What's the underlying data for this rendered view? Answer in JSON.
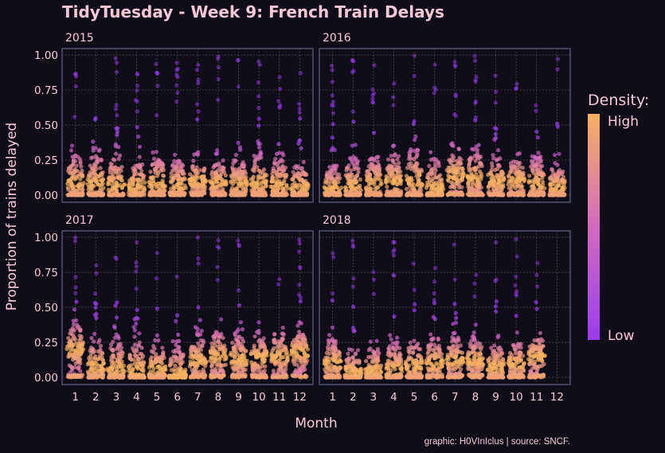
{
  "chart_data": {
    "type": "scatter",
    "subtype": "beeswarm-faceted",
    "title": "TidyTuesday - Week 9: French Train Delays",
    "xlabel": "Month",
    "ylabel": "Proportion of trains delayed",
    "caption": "graphic: H0VInIclus | source: SNCF.",
    "x_ticks": [
      "1",
      "2",
      "3",
      "4",
      "5",
      "6",
      "7",
      "8",
      "9",
      "10",
      "11",
      "12"
    ],
    "y_ticks": [
      "0.00",
      "0.25",
      "0.50",
      "0.75",
      "1.00"
    ],
    "ylim": [
      0,
      1
    ],
    "grid": true,
    "legend": {
      "title": "Density:",
      "high_label": "High",
      "low_label": "Low",
      "placement": "right"
    },
    "colors": {
      "low": "#9b3cf0",
      "mid": "#d46ac0",
      "high": "#f6b062",
      "panel_border": "#4a4f6e",
      "grid": "#6b5a48",
      "text": "#f8c8d4",
      "background": "#0f0d1a"
    },
    "facets": [
      {
        "name": "2015",
        "months": [
          1,
          2,
          3,
          4,
          5,
          6,
          7,
          8,
          9,
          10,
          11,
          12
        ],
        "median_delay": [
          0.09,
          0.08,
          0.07,
          0.06,
          0.08,
          0.07,
          0.1,
          0.09,
          0.08,
          0.09,
          0.07,
          0.06
        ],
        "spread": [
          0.55,
          0.6,
          0.62,
          0.6,
          0.58,
          0.52,
          0.5,
          0.45,
          0.5,
          0.55,
          0.55,
          0.48
        ]
      },
      {
        "name": "2016",
        "months": [
          1,
          2,
          3,
          4,
          5,
          6,
          7,
          8,
          9,
          10,
          11,
          12
        ],
        "median_delay": [
          0.05,
          0.07,
          0.08,
          0.09,
          0.1,
          0.05,
          0.14,
          0.12,
          0.1,
          0.1,
          0.08,
          0.06
        ],
        "spread": [
          0.45,
          0.5,
          0.55,
          0.58,
          0.6,
          0.6,
          0.55,
          0.55,
          0.5,
          0.5,
          0.5,
          0.45
        ]
      },
      {
        "name": "2017",
        "months": [
          1,
          2,
          3,
          4,
          5,
          6,
          7,
          8,
          9,
          10,
          11,
          12
        ],
        "median_delay": [
          0.2,
          0.08,
          0.06,
          0.05,
          0.06,
          0.02,
          0.12,
          0.15,
          0.13,
          0.14,
          0.15,
          0.18
        ],
        "spread": [
          0.5,
          0.55,
          0.58,
          0.6,
          0.55,
          0.6,
          0.5,
          0.5,
          0.5,
          0.48,
          0.5,
          0.5
        ]
      },
      {
        "name": "2018",
        "months": [
          1,
          2,
          3,
          4,
          5,
          6,
          7,
          8,
          9,
          10,
          11
        ],
        "median_delay": [
          0.1,
          0.04,
          0.05,
          0.06,
          0.08,
          0.1,
          0.12,
          0.12,
          0.08,
          0.1,
          0.15
        ],
        "spread": [
          0.5,
          0.45,
          0.48,
          0.55,
          0.55,
          0.52,
          0.48,
          0.45,
          0.48,
          0.45,
          0.45
        ]
      }
    ]
  }
}
